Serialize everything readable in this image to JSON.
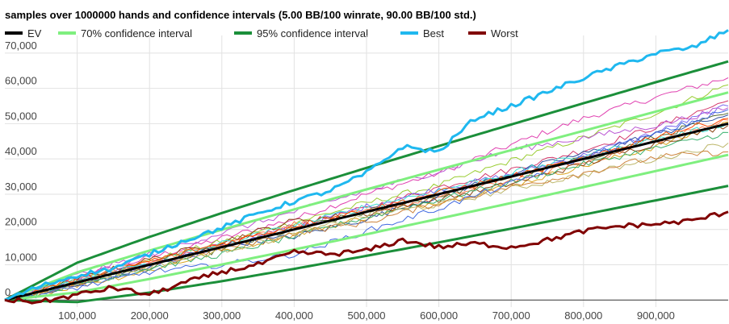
{
  "chart_data": {
    "type": "line",
    "title": "samples over 1000000 hands and confidence intervals (5.00 BB/100 winrate, 90.00 BB/100 std.)",
    "xlabel": "",
    "ylabel": "",
    "xlim": [
      0,
      1000000
    ],
    "ylim": [
      -2000,
      75000
    ],
    "grid": true,
    "legend_position": "top",
    "x_ticks": [
      {
        "value": 100000,
        "label": "100,000"
      },
      {
        "value": 200000,
        "label": "200,000"
      },
      {
        "value": 300000,
        "label": "300,000"
      },
      {
        "value": 400000,
        "label": "400,000"
      },
      {
        "value": 500000,
        "label": "500,000"
      },
      {
        "value": 600000,
        "label": "600,000"
      },
      {
        "value": 700000,
        "label": "700,000"
      },
      {
        "value": 800000,
        "label": "800,000"
      },
      {
        "value": 900000,
        "label": "900,000"
      }
    ],
    "y_ticks": [
      {
        "value": 0,
        "label": "0"
      },
      {
        "value": 10000,
        "label": "10,000"
      },
      {
        "value": 20000,
        "label": "20,000"
      },
      {
        "value": 30000,
        "label": "30,000"
      },
      {
        "value": 40000,
        "label": "40,000"
      },
      {
        "value": 50000,
        "label": "50,000"
      },
      {
        "value": 60000,
        "label": "60,000"
      },
      {
        "value": 70000,
        "label": "70,000"
      }
    ],
    "legend": [
      {
        "label": "EV",
        "color": "#000000"
      },
      {
        "label": "70% confidence interval",
        "color": "#7fef7f"
      },
      {
        "label": "95% confidence interval",
        "color": "#1b8f3a"
      },
      {
        "label": "Best",
        "color": "#1fb8ef"
      },
      {
        "label": "Worst",
        "color": "#800000"
      }
    ],
    "winrate_bb_per_100": 5.0,
    "std_bb_per_100": 90.0,
    "series": [
      {
        "name": "EV",
        "color": "#000000",
        "x": [
          0,
          100000,
          200000,
          300000,
          400000,
          500000,
          600000,
          700000,
          800000,
          900000,
          1000000
        ],
        "y": [
          0,
          5000,
          10000,
          15000,
          20000,
          25000,
          30000,
          35000,
          40000,
          45000,
          50000
        ]
      },
      {
        "name": "Best",
        "color": "#1fb8ef",
        "x": [
          0,
          50000,
          100000,
          150000,
          200000,
          250000,
          300000,
          350000,
          400000,
          450000,
          500000,
          550000,
          600000,
          650000,
          700000,
          750000,
          800000,
          850000,
          900000,
          950000,
          1000000
        ],
        "y": [
          0,
          4000,
          7000,
          9000,
          13000,
          17000,
          20500,
          24500,
          28000,
          31000,
          36000,
          43500,
          42000,
          51500,
          55000,
          59000,
          63000,
          66500,
          70000,
          71500,
          76500
        ]
      },
      {
        "name": "Worst",
        "color": "#800000",
        "x": [
          0,
          50000,
          100000,
          150000,
          200000,
          250000,
          300000,
          350000,
          400000,
          450000,
          500000,
          550000,
          600000,
          650000,
          700000,
          750000,
          800000,
          850000,
          900000,
          950000,
          1000000
        ],
        "y": [
          0,
          -500,
          1500,
          3500,
          1500,
          5000,
          8000,
          10000,
          13500,
          13000,
          14000,
          17000,
          15000,
          16000,
          15000,
          17000,
          19500,
          21000,
          21500,
          22500,
          25000
        ]
      },
      {
        "name": "70% confidence interval (upper)",
        "color": "#7fef7f",
        "x": [
          0,
          100000,
          200000,
          300000,
          400000,
          500000,
          600000,
          700000,
          800000,
          900000,
          1000000
        ],
        "y": [
          0,
          7850,
          14020,
          19930,
          25690,
          31360,
          36950,
          42490,
          47980,
          53430,
          58850
        ]
      },
      {
        "name": "70% confidence interval (lower)",
        "color": "#7fef7f",
        "x": [
          0,
          100000,
          200000,
          300000,
          400000,
          500000,
          600000,
          700000,
          800000,
          900000,
          1000000
        ],
        "y": [
          0,
          2150,
          5980,
          10070,
          14310,
          18640,
          23050,
          27510,
          32020,
          36570,
          41150
        ]
      },
      {
        "name": "95% confidence interval (upper)",
        "color": "#1b8f3a",
        "x": [
          0,
          100000,
          200000,
          300000,
          400000,
          500000,
          600000,
          700000,
          800000,
          900000,
          1000000
        ],
        "y": [
          0,
          10580,
          17890,
          24660,
          31160,
          37470,
          43660,
          49760,
          55780,
          61740,
          67640
        ]
      },
      {
        "name": "95% confidence interval (lower)",
        "color": "#1b8f3a",
        "x": [
          0,
          100000,
          200000,
          300000,
          400000,
          500000,
          600000,
          700000,
          800000,
          900000,
          1000000
        ],
        "y": [
          0,
          -580,
          2110,
          5340,
          8840,
          12530,
          16340,
          20240,
          24220,
          28260,
          32360
        ]
      }
    ],
    "samples": [
      {
        "color": "#e040b0",
        "y": [
          0,
          6500,
          12000,
          17500,
          23000,
          30000,
          36000,
          44000,
          51500,
          57500,
          63000
        ]
      },
      {
        "color": "#9acd32",
        "y": [
          0,
          5500,
          11000,
          16500,
          22000,
          27500,
          32500,
          39500,
          46000,
          53000,
          61000
        ]
      },
      {
        "color": "#d4386c",
        "y": [
          0,
          5000,
          10500,
          15500,
          21000,
          26000,
          32000,
          37000,
          42500,
          49000,
          56500
        ]
      },
      {
        "color": "#7b68ee",
        "y": [
          0,
          5500,
          10000,
          15000,
          20500,
          26500,
          31500,
          35500,
          41000,
          47500,
          55000
        ]
      },
      {
        "color": "#556b2f",
        "y": [
          0,
          4500,
          9000,
          14500,
          20000,
          25000,
          29500,
          35000,
          40000,
          46000,
          53000
        ]
      },
      {
        "color": "#daa520",
        "y": [
          0,
          4000,
          8500,
          14000,
          18500,
          23500,
          28000,
          32500,
          38000,
          43500,
          50500
        ]
      },
      {
        "color": "#ff7f50",
        "y": [
          0,
          5500,
          11000,
          16000,
          21500,
          25000,
          29000,
          34000,
          39000,
          45000,
          51000
        ]
      },
      {
        "color": "#2f4f9f",
        "y": [
          0,
          4000,
          9500,
          15500,
          18000,
          23000,
          29500,
          36000,
          41500,
          47000,
          52500
        ]
      },
      {
        "color": "#8b4513",
        "y": [
          0,
          6000,
          11500,
          16500,
          22500,
          24500,
          28500,
          33000,
          38500,
          44500,
          49500
        ]
      },
      {
        "color": "#3cb371",
        "y": [
          0,
          4500,
          9000,
          13000,
          18000,
          23500,
          28500,
          33500,
          38500,
          43000,
          47500
        ]
      },
      {
        "color": "#ba55d3",
        "y": [
          0,
          7000,
          13000,
          19000,
          25000,
          31000,
          36500,
          42500,
          46000,
          49500,
          54500
        ]
      },
      {
        "color": "#bdb76b",
        "y": [
          0,
          5000,
          9500,
          14000,
          18500,
          24000,
          27000,
          31500,
          35500,
          40000,
          44500
        ]
      },
      {
        "color": "#cd853f",
        "y": [
          0,
          4500,
          10000,
          14500,
          19000,
          22000,
          27500,
          32000,
          36000,
          40500,
          42000
        ]
      },
      {
        "color": "#40e0d0",
        "y": [
          0,
          5500,
          10500,
          16000,
          21000,
          26500,
          31000,
          36000,
          41000,
          45500,
          50000
        ]
      },
      {
        "color": "#ff4500",
        "y": [
          0,
          6000,
          11000,
          16000,
          21000,
          25500,
          30500,
          35000,
          40000,
          46500,
          51500
        ]
      },
      {
        "color": "#4169e1",
        "y": [
          0,
          3500,
          8000,
          10000,
          13000,
          19500,
          26000,
          33000,
          40500,
          47000,
          54000
        ]
      }
    ]
  }
}
